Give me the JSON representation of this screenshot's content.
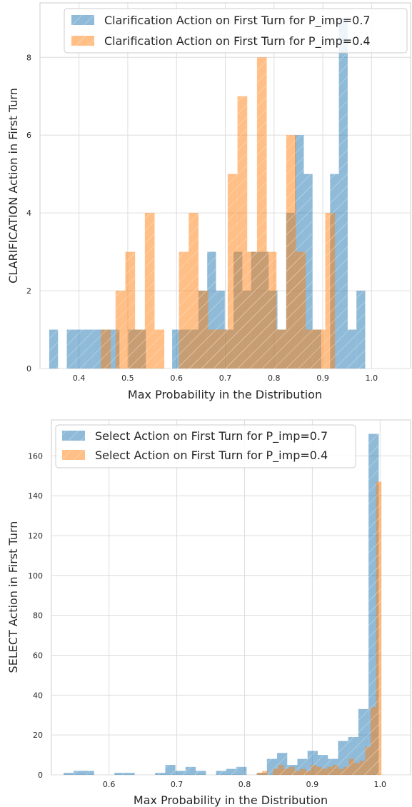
{
  "chart_data": [
    {
      "type": "histogram",
      "xlabel": "Max Probability in the Distribution",
      "ylabel": "CLARIFICATION Action in First Turn",
      "xlim": [
        0.32,
        1.08
      ],
      "ylim": [
        0,
        9.4
      ],
      "xticks": [
        "0.4",
        "0.5",
        "0.6",
        "0.7",
        "0.8",
        "0.9",
        "1.0"
      ],
      "xtick_values": [
        0.4,
        0.5,
        0.6,
        0.7,
        0.8,
        0.9,
        1.0
      ],
      "yticks": [
        "0",
        "2",
        "4",
        "6",
        "8"
      ],
      "ytick_values": [
        0,
        2,
        4,
        6,
        8
      ],
      "grid": true,
      "legend_position": "top-right",
      "hatch": true,
      "series": [
        {
          "name": "Clarification Action on First Turn for P_imp=0.7",
          "color": "#1f77b4",
          "opacity": 0.5,
          "bins": [
            [
              0.339,
              0.357,
              1
            ],
            [
              0.375,
              0.393,
              1
            ],
            [
              0.393,
              0.411,
              1
            ],
            [
              0.411,
              0.429,
              1
            ],
            [
              0.429,
              0.447,
              1
            ],
            [
              0.447,
              0.465,
              1
            ],
            [
              0.465,
              0.483,
              1
            ],
            [
              0.501,
              0.519,
              1
            ],
            [
              0.519,
              0.537,
              1
            ],
            [
              0.591,
              0.609,
              1
            ],
            [
              0.609,
              0.627,
              1
            ],
            [
              0.627,
              0.645,
              1
            ],
            [
              0.645,
              0.663,
              2
            ],
            [
              0.663,
              0.681,
              3
            ],
            [
              0.681,
              0.699,
              2
            ],
            [
              0.699,
              0.717,
              1
            ],
            [
              0.717,
              0.735,
              3
            ],
            [
              0.735,
              0.753,
              2
            ],
            [
              0.753,
              0.771,
              3
            ],
            [
              0.771,
              0.789,
              3
            ],
            [
              0.789,
              0.807,
              2
            ],
            [
              0.807,
              0.825,
              1
            ],
            [
              0.825,
              0.843,
              4
            ],
            [
              0.843,
              0.861,
              6
            ],
            [
              0.861,
              0.879,
              5
            ],
            [
              0.879,
              0.897,
              1
            ],
            [
              0.915,
              0.933,
              5
            ],
            [
              0.933,
              0.951,
              9
            ],
            [
              0.951,
              0.969,
              1
            ],
            [
              0.969,
              0.987,
              2
            ]
          ]
        },
        {
          "name": "Clarification Action on First Turn for P_imp=0.4",
          "color": "#ff7f0e",
          "opacity": 0.5,
          "bins": [
            [
              0.445,
              0.465,
              1
            ],
            [
              0.475,
              0.495,
              2
            ],
            [
              0.495,
              0.515,
              3
            ],
            [
              0.515,
              0.535,
              1
            ],
            [
              0.535,
              0.555,
              4
            ],
            [
              0.555,
              0.575,
              1
            ],
            [
              0.605,
              0.625,
              3
            ],
            [
              0.625,
              0.645,
              4
            ],
            [
              0.645,
              0.665,
              2
            ],
            [
              0.665,
              0.685,
              1
            ],
            [
              0.685,
              0.705,
              1
            ],
            [
              0.705,
              0.725,
              5
            ],
            [
              0.725,
              0.745,
              7
            ],
            [
              0.745,
              0.765,
              3
            ],
            [
              0.765,
              0.785,
              8
            ],
            [
              0.785,
              0.805,
              3
            ],
            [
              0.805,
              0.825,
              1
            ],
            [
              0.825,
              0.845,
              6
            ],
            [
              0.845,
              0.865,
              3
            ],
            [
              0.865,
              0.885,
              1
            ],
            [
              0.885,
              0.905,
              1
            ],
            [
              0.905,
              0.925,
              4
            ]
          ]
        }
      ]
    },
    {
      "type": "histogram",
      "xlabel": "Max Probability in the Distribution",
      "ylabel": "SELECT Action in First Turn",
      "xlim": [
        0.515,
        1.045
      ],
      "ylim": [
        0,
        178
      ],
      "xticks": [
        "0.6",
        "0.7",
        "0.8",
        "0.9",
        "1.0"
      ],
      "xtick_values": [
        0.6,
        0.7,
        0.8,
        0.9,
        1.0
      ],
      "yticks": [
        "0",
        "20",
        "40",
        "60",
        "80",
        "100",
        "120",
        "140",
        "160"
      ],
      "ytick_values": [
        0,
        20,
        40,
        60,
        80,
        100,
        120,
        140,
        160
      ],
      "grid": true,
      "legend_position": "top-left",
      "hatch": true,
      "series": [
        {
          "name": "Select Action on First Turn for P_imp=0.7",
          "color": "#1f77b4",
          "opacity": 0.5,
          "bins": [
            [
              0.533,
              0.548,
              1
            ],
            [
              0.548,
              0.563,
              2
            ],
            [
              0.563,
              0.578,
              2
            ],
            [
              0.593,
              0.608,
              0
            ],
            [
              0.608,
              0.623,
              1
            ],
            [
              0.623,
              0.638,
              1
            ],
            [
              0.668,
              0.683,
              1
            ],
            [
              0.683,
              0.698,
              5
            ],
            [
              0.698,
              0.713,
              2
            ],
            [
              0.713,
              0.728,
              4
            ],
            [
              0.728,
              0.743,
              2
            ],
            [
              0.758,
              0.773,
              2
            ],
            [
              0.773,
              0.788,
              3
            ],
            [
              0.788,
              0.803,
              4
            ],
            [
              0.818,
              0.833,
              1
            ],
            [
              0.833,
              0.848,
              8
            ],
            [
              0.848,
              0.863,
              11
            ],
            [
              0.863,
              0.878,
              5
            ],
            [
              0.878,
              0.893,
              8
            ],
            [
              0.893,
              0.908,
              12
            ],
            [
              0.908,
              0.923,
              10
            ],
            [
              0.923,
              0.938,
              8
            ],
            [
              0.938,
              0.953,
              17
            ],
            [
              0.953,
              0.968,
              19
            ],
            [
              0.968,
              0.983,
              33
            ],
            [
              0.983,
              0.998,
              171
            ]
          ]
        },
        {
          "name": "Select Action on First Turn for P_imp=0.4",
          "color": "#ff7f0e",
          "opacity": 0.5,
          "bins": [
            [
              0.818,
              0.826,
              1
            ],
            [
              0.826,
              0.834,
              2
            ],
            [
              0.842,
              0.85,
              3
            ],
            [
              0.85,
              0.858,
              5
            ],
            [
              0.858,
              0.866,
              3
            ],
            [
              0.866,
              0.874,
              4
            ],
            [
              0.874,
              0.882,
              2
            ],
            [
              0.882,
              0.89,
              3
            ],
            [
              0.89,
              0.898,
              2
            ],
            [
              0.898,
              0.906,
              5
            ],
            [
              0.906,
              0.914,
              4
            ],
            [
              0.914,
              0.922,
              3
            ],
            [
              0.922,
              0.93,
              4
            ],
            [
              0.93,
              0.938,
              5
            ],
            [
              0.938,
              0.946,
              3
            ],
            [
              0.946,
              0.954,
              4
            ],
            [
              0.954,
              0.962,
              8
            ],
            [
              0.962,
              0.97,
              6
            ],
            [
              0.97,
              0.978,
              7
            ],
            [
              0.978,
              0.986,
              14
            ],
            [
              0.986,
              0.994,
              34
            ],
            [
              0.994,
              1.002,
              147
            ]
          ]
        }
      ]
    }
  ]
}
